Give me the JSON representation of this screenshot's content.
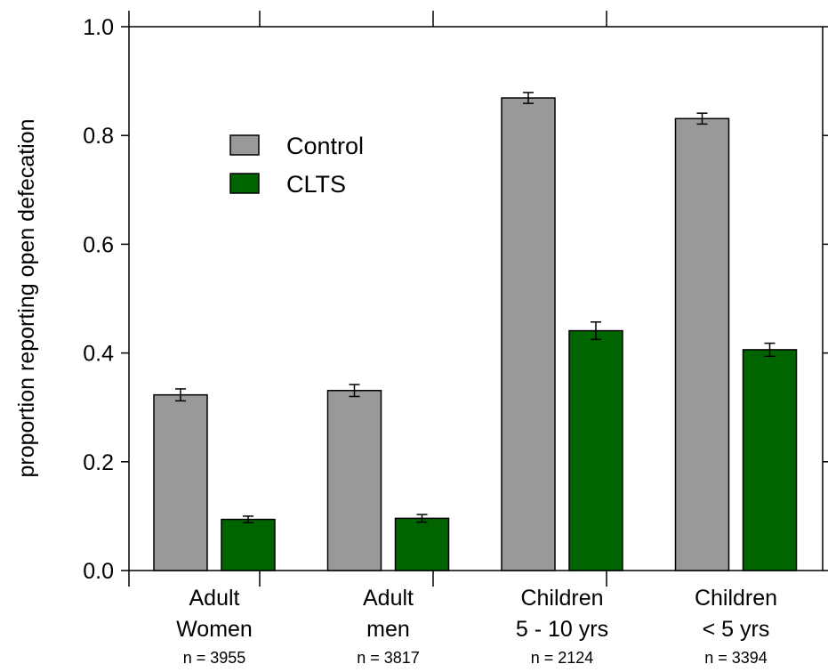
{
  "chart_data": {
    "type": "bar",
    "title": "",
    "xlabel": "",
    "ylabel": "proportion reporting open defecation",
    "ylim": [
      0,
      1.0
    ],
    "yticks": [
      "0.0",
      "0.2",
      "0.4",
      "0.6",
      "0.8",
      "1.0"
    ],
    "grid": false,
    "legend_position": "top-left",
    "categories": [
      {
        "line1": "Adult",
        "line2": "Women",
        "n": "n = 3955"
      },
      {
        "line1": "Adult",
        "line2": "men",
        "n": "n = 3817"
      },
      {
        "line1": "Children",
        "line2": "5 - 10  yrs",
        "n": "n = 2124"
      },
      {
        "line1": "Children",
        "line2": "< 5 yrs",
        "n": "n = 3394"
      }
    ],
    "series": [
      {
        "name": "Control",
        "color": "#999999",
        "values": [
          0.323,
          0.331,
          0.869,
          0.831
        ],
        "errors": [
          0.011,
          0.011,
          0.01,
          0.01
        ]
      },
      {
        "name": "CLTS",
        "color": "#006400",
        "values": [
          0.094,
          0.096,
          0.441,
          0.406
        ],
        "errors": [
          0.006,
          0.007,
          0.016,
          0.012
        ]
      }
    ]
  }
}
